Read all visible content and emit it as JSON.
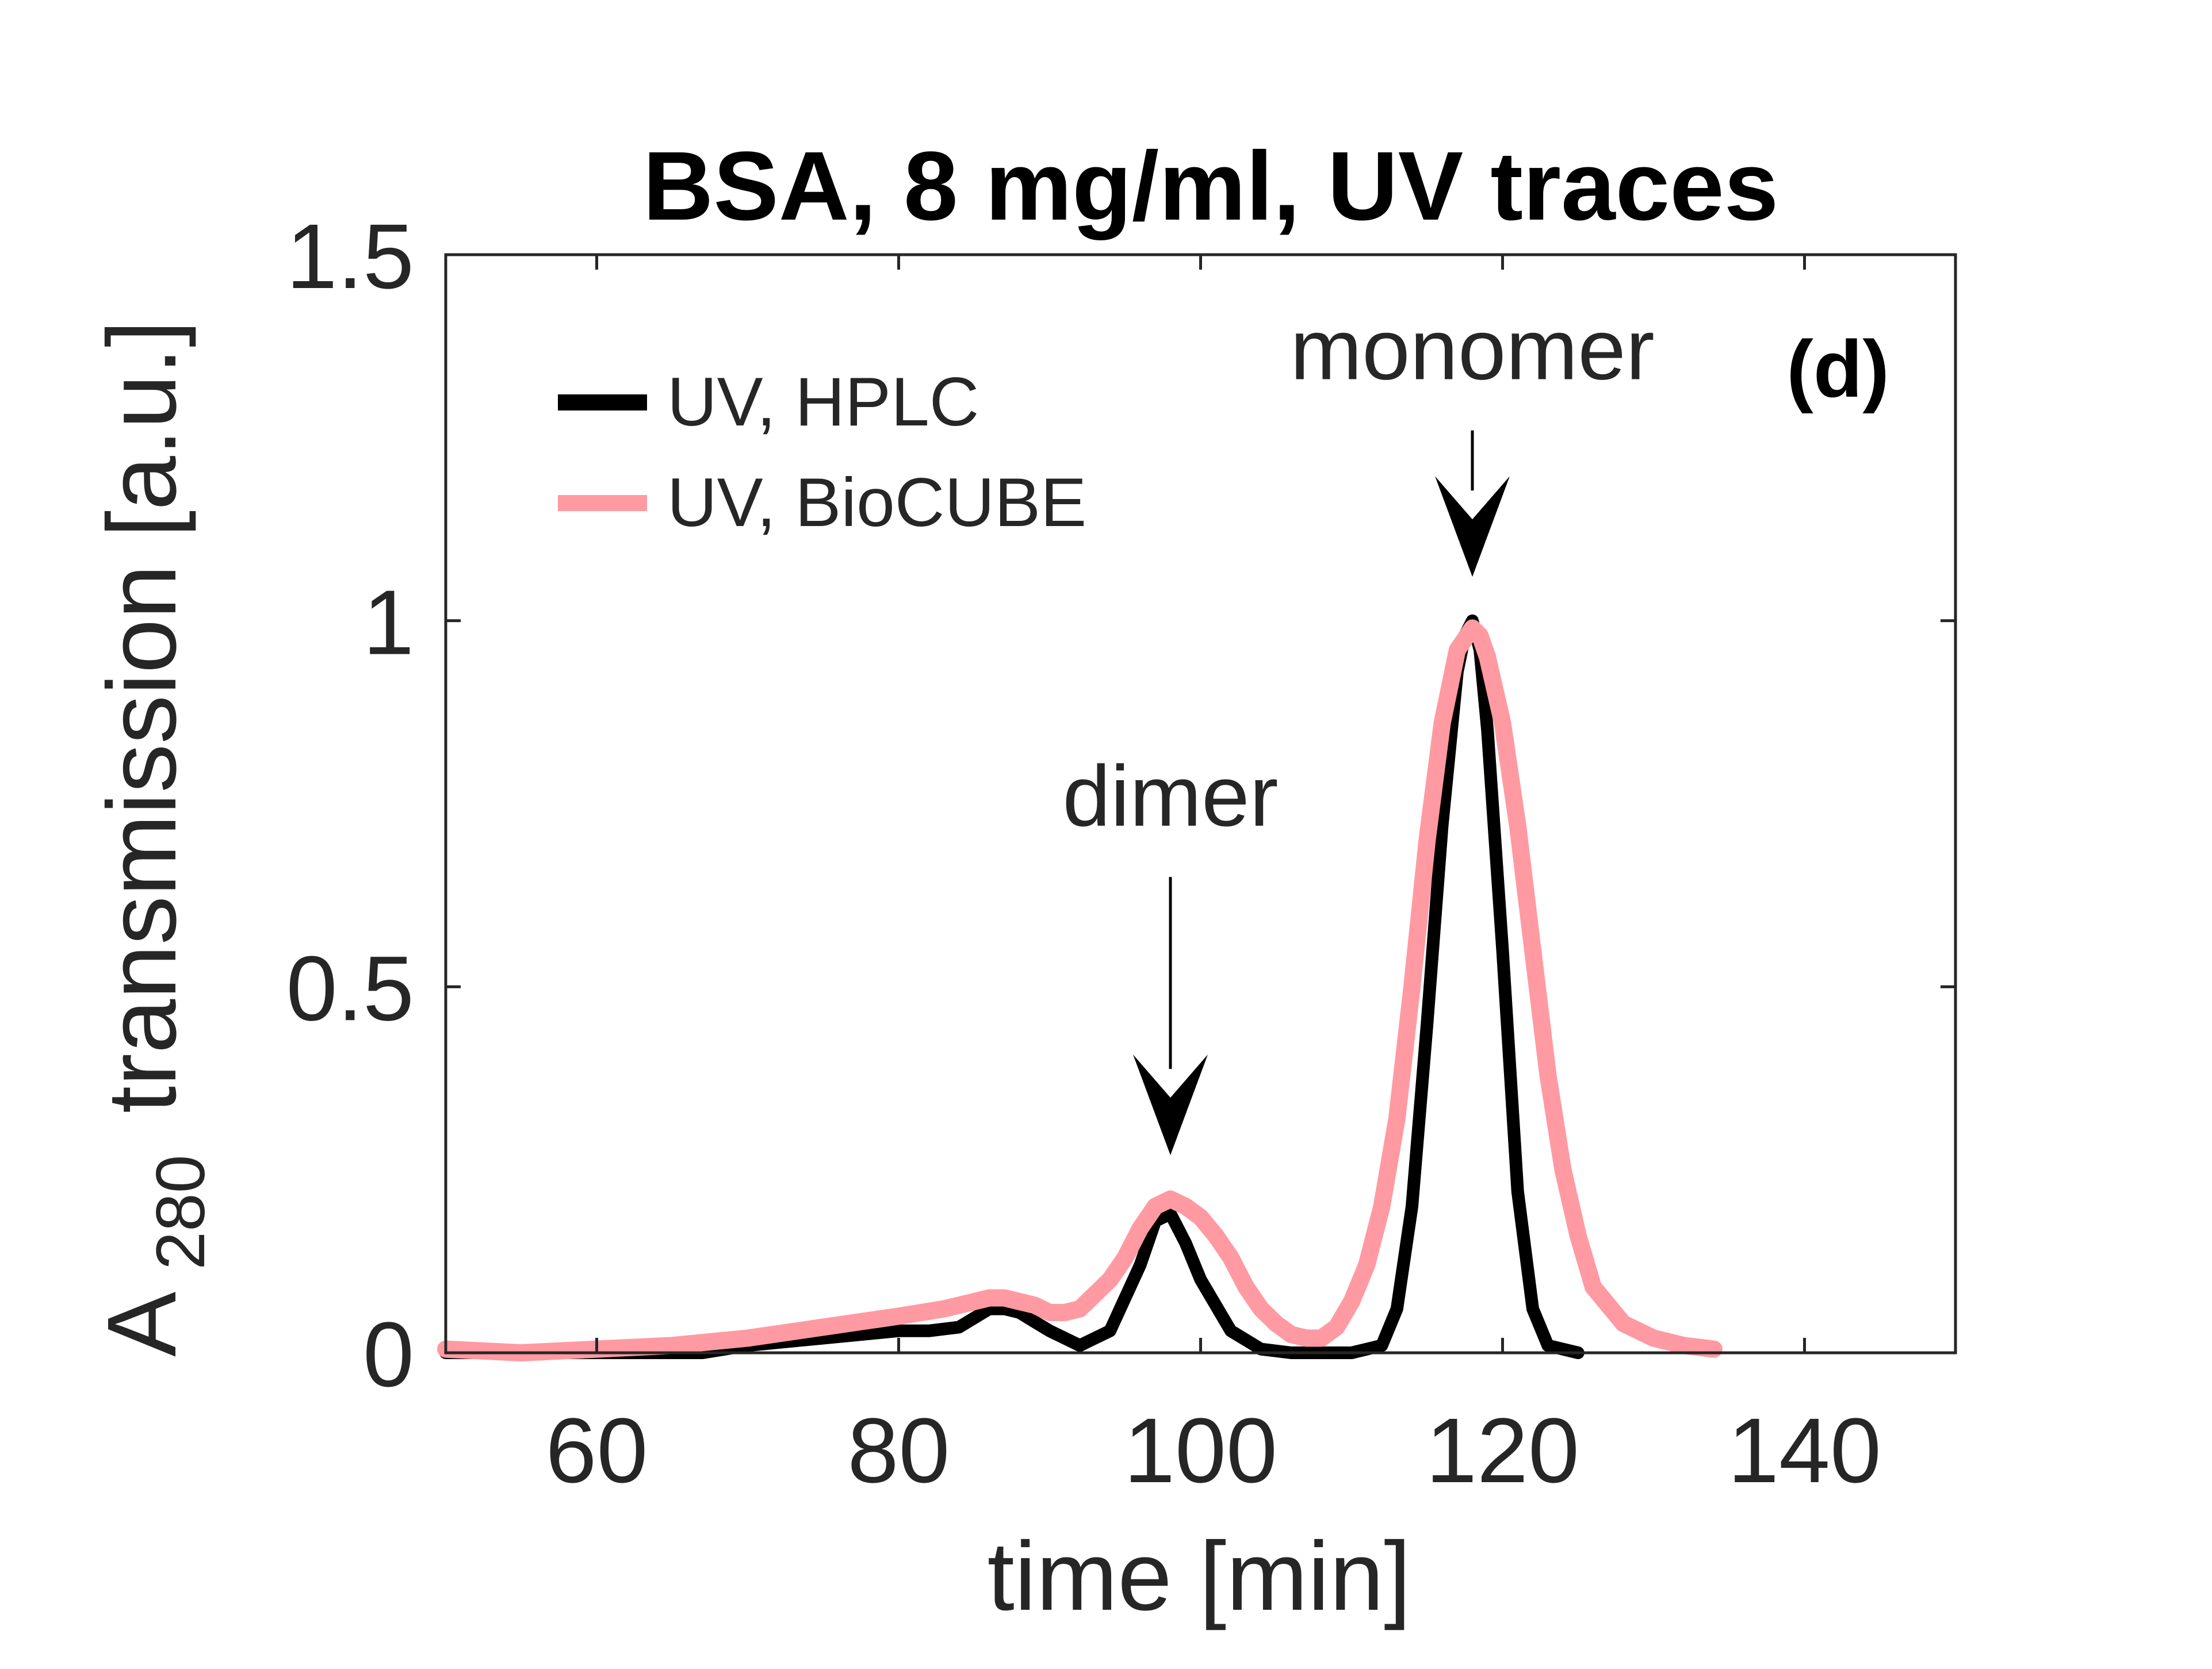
{
  "chart_data": {
    "type": "line",
    "title": "BSA, 8 mg/ml, UV traces",
    "panel_tag": "(d)",
    "xlabel": "time [min]",
    "ylabel_main": "transmission [a.u.]",
    "ylabel_prefix": "A",
    "ylabel_subscript": "280",
    "xlim": [
      50,
      150
    ],
    "ylim": [
      0,
      1.5
    ],
    "xticks": [
      60,
      80,
      100,
      120,
      140
    ],
    "xtick_labels": [
      "60",
      "80",
      "100",
      "120",
      "140"
    ],
    "yticks": [
      0,
      0.5,
      1,
      1.5
    ],
    "ytick_labels": [
      "0",
      "0.5",
      "1",
      "1.5"
    ],
    "grid": false,
    "legend_placement": "top-left",
    "series": [
      {
        "name": "UV, HPLC",
        "color": "#000000",
        "x": [
          50,
          60,
          67,
          70,
          75,
          80,
          82,
          84,
          86,
          87,
          88,
          90,
          92,
          94,
          96,
          97,
          98,
          99,
          100,
          102,
          104,
          106,
          108,
          110,
          112,
          113,
          114,
          115,
          116,
          117,
          117.5,
          118,
          118.5,
          119,
          120,
          121,
          122,
          123,
          125
        ],
        "y": [
          0.0,
          0.0,
          0.0,
          0.01,
          0.02,
          0.03,
          0.03,
          0.035,
          0.06,
          0.06,
          0.055,
          0.03,
          0.01,
          0.03,
          0.12,
          0.18,
          0.19,
          0.15,
          0.1,
          0.03,
          0.005,
          0.0,
          0.0,
          0.0,
          0.01,
          0.06,
          0.2,
          0.45,
          0.72,
          0.93,
          0.98,
          1.0,
          0.96,
          0.85,
          0.55,
          0.22,
          0.06,
          0.01,
          0.0
        ]
      },
      {
        "name": "UV, BioCUBE",
        "color": "#ff9aa2",
        "x": [
          50,
          55,
          60,
          65,
          70,
          75,
          80,
          83,
          85,
          86,
          87,
          88,
          89,
          90,
          91,
          92,
          93,
          94,
          95,
          96,
          97,
          98,
          99,
          100,
          101,
          102,
          103,
          104,
          105,
          106,
          107,
          108,
          109,
          110,
          111,
          112,
          113,
          114,
          115,
          116,
          117,
          118,
          118.5,
          119,
          120,
          121,
          122,
          123,
          124,
          125,
          126,
          128,
          130,
          132,
          134
        ],
        "y": [
          0.005,
          0.0,
          0.005,
          0.01,
          0.02,
          0.035,
          0.05,
          0.06,
          0.07,
          0.075,
          0.075,
          0.07,
          0.065,
          0.055,
          0.055,
          0.06,
          0.08,
          0.1,
          0.13,
          0.17,
          0.2,
          0.21,
          0.2,
          0.185,
          0.16,
          0.13,
          0.09,
          0.06,
          0.04,
          0.025,
          0.02,
          0.02,
          0.035,
          0.07,
          0.12,
          0.2,
          0.32,
          0.5,
          0.7,
          0.86,
          0.96,
          0.99,
          0.98,
          0.95,
          0.86,
          0.72,
          0.55,
          0.38,
          0.25,
          0.16,
          0.09,
          0.04,
          0.02,
          0.01,
          0.005
        ]
      }
    ],
    "annotations": [
      {
        "text": "dimer",
        "x": 98,
        "text_y": 0.72,
        "arrow_top_y": 0.65,
        "arrow_tip_y": 0.27
      },
      {
        "text": "monomer",
        "x": 118,
        "text_y": 1.33,
        "arrow_top_y": 1.26,
        "arrow_tip_y": 1.06
      }
    ]
  }
}
